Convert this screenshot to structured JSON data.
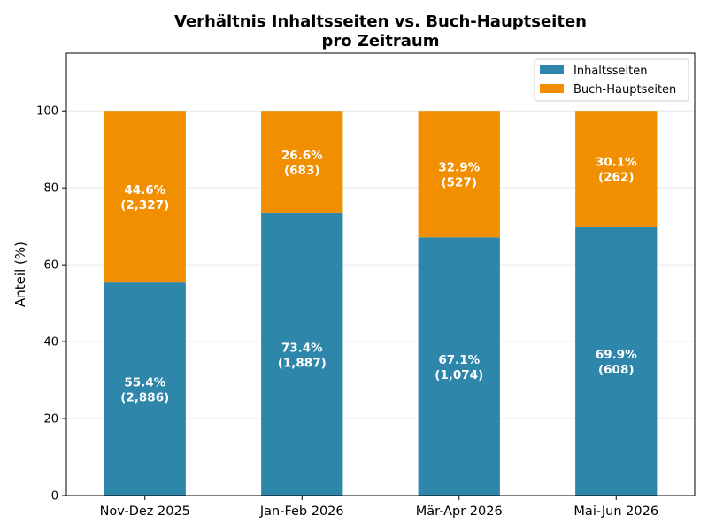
{
  "chart_data": {
    "type": "bar",
    "stacked": true,
    "title_line1": "Verhältnis Inhaltsseiten vs. Buch-Hauptseiten",
    "title_line2": "pro Zeitraum",
    "ylabel": "Anteil (%)",
    "ylim": [
      0,
      115
    ],
    "yticks": [
      0,
      20,
      40,
      60,
      80,
      100
    ],
    "grid": "horizontal",
    "legend_position": "top-right",
    "categories": [
      "Nov-Dez 2025",
      "Jan-Feb 2026",
      "Mär-Apr 2026",
      "Mai-Jun 2026"
    ],
    "series": [
      {
        "name": "Inhaltsseiten",
        "color": "#2e86ab",
        "values": [
          55.4,
          73.4,
          67.1,
          69.9
        ],
        "labels_pct": [
          "55.4%",
          "73.4%",
          "67.1%",
          "69.9%"
        ],
        "labels_count": [
          "(2,886)",
          "(1,887)",
          "(1,074)",
          "(608)"
        ]
      },
      {
        "name": "Buch-Hauptseiten",
        "color": "#f18f01",
        "values": [
          44.6,
          26.6,
          32.9,
          30.1
        ],
        "labels_pct": [
          "44.6%",
          "26.6%",
          "32.9%",
          "30.1%"
        ],
        "labels_count": [
          "(2,327)",
          "(683)",
          "(527)",
          "(262)"
        ]
      }
    ]
  }
}
